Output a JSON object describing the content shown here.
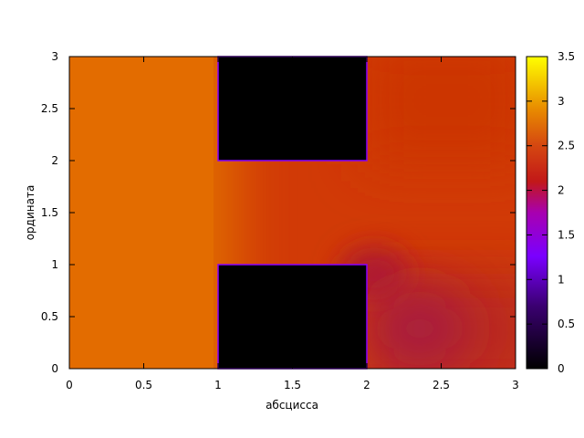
{
  "chart_data": {
    "type": "heatmap",
    "title": "",
    "xlabel": "абсцисса",
    "ylabel": "ордината",
    "xlim": [
      0,
      3
    ],
    "ylim": [
      0,
      3
    ],
    "x_ticks": [
      "0",
      "0.5",
      "1",
      "1.5",
      "2",
      "2.5",
      "3"
    ],
    "y_ticks": [
      "0",
      "0.5",
      "1",
      "1.5",
      "2",
      "2.5",
      "3"
    ],
    "colorbar": {
      "range": [
        0,
        3.5
      ],
      "ticks": [
        "0",
        "0.5",
        "1",
        "1.5",
        "2",
        "2.5",
        "3",
        "3.5"
      ],
      "palette": [
        "#000000",
        "#7a00ff",
        "#c21818",
        "#e06a00",
        "#ffff00"
      ]
    },
    "obstacles": [
      {
        "x": [
          1,
          2
        ],
        "y": [
          2,
          3
        ],
        "value": 0
      },
      {
        "x": [
          1,
          2
        ],
        "y": [
          0,
          1
        ],
        "value": 0
      }
    ],
    "field_values": {
      "left_region": 2.6,
      "upper_right_region": 2.2,
      "center_channel": 2.15,
      "near_point_2_1": 1.55,
      "lower_right_region": 1.8
    },
    "grid": false,
    "boundary_color": "#8a00ff"
  }
}
